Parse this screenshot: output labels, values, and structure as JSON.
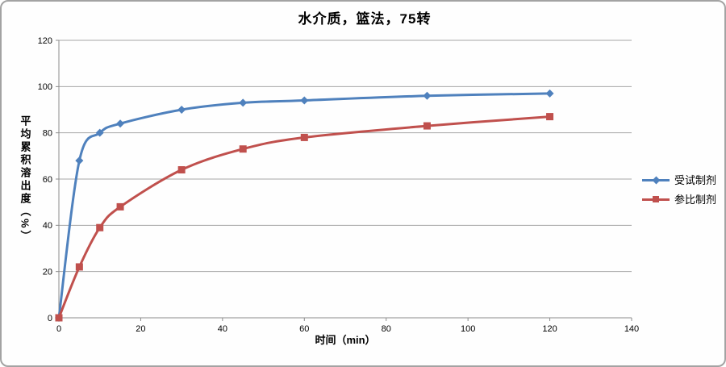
{
  "chart_data": {
    "type": "line",
    "title": "水介质，篮法，75转",
    "xlabel": "时间（min）",
    "ylabel": "平均累积溶出度（%）",
    "x": [
      0,
      5,
      10,
      15,
      30,
      45,
      60,
      90,
      120
    ],
    "series": [
      {
        "name": "受试制剂",
        "marker": "diamond",
        "color": "#4F81BD",
        "values": [
          0,
          68,
          80,
          84,
          90,
          93,
          94,
          96,
          97
        ]
      },
      {
        "name": "参比制剂",
        "marker": "square",
        "color": "#C0504D",
        "values": [
          0,
          22,
          39,
          48,
          64,
          73,
          78,
          83,
          87
        ]
      }
    ],
    "xlim": [
      0,
      140
    ],
    "ylim": [
      0,
      120
    ],
    "xticks": [
      0,
      20,
      40,
      60,
      80,
      100,
      120,
      140
    ],
    "yticks": [
      0,
      20,
      40,
      60,
      80,
      100,
      120
    ],
    "grid": "horizontal",
    "legend_position": "right",
    "smooth": true,
    "colors": {
      "gridline": "#A6A6A6",
      "axis": "#8C8C8C",
      "tick_label": "#000000",
      "frame_border": "#A3A3A3",
      "background": "#FEFEFE"
    }
  }
}
